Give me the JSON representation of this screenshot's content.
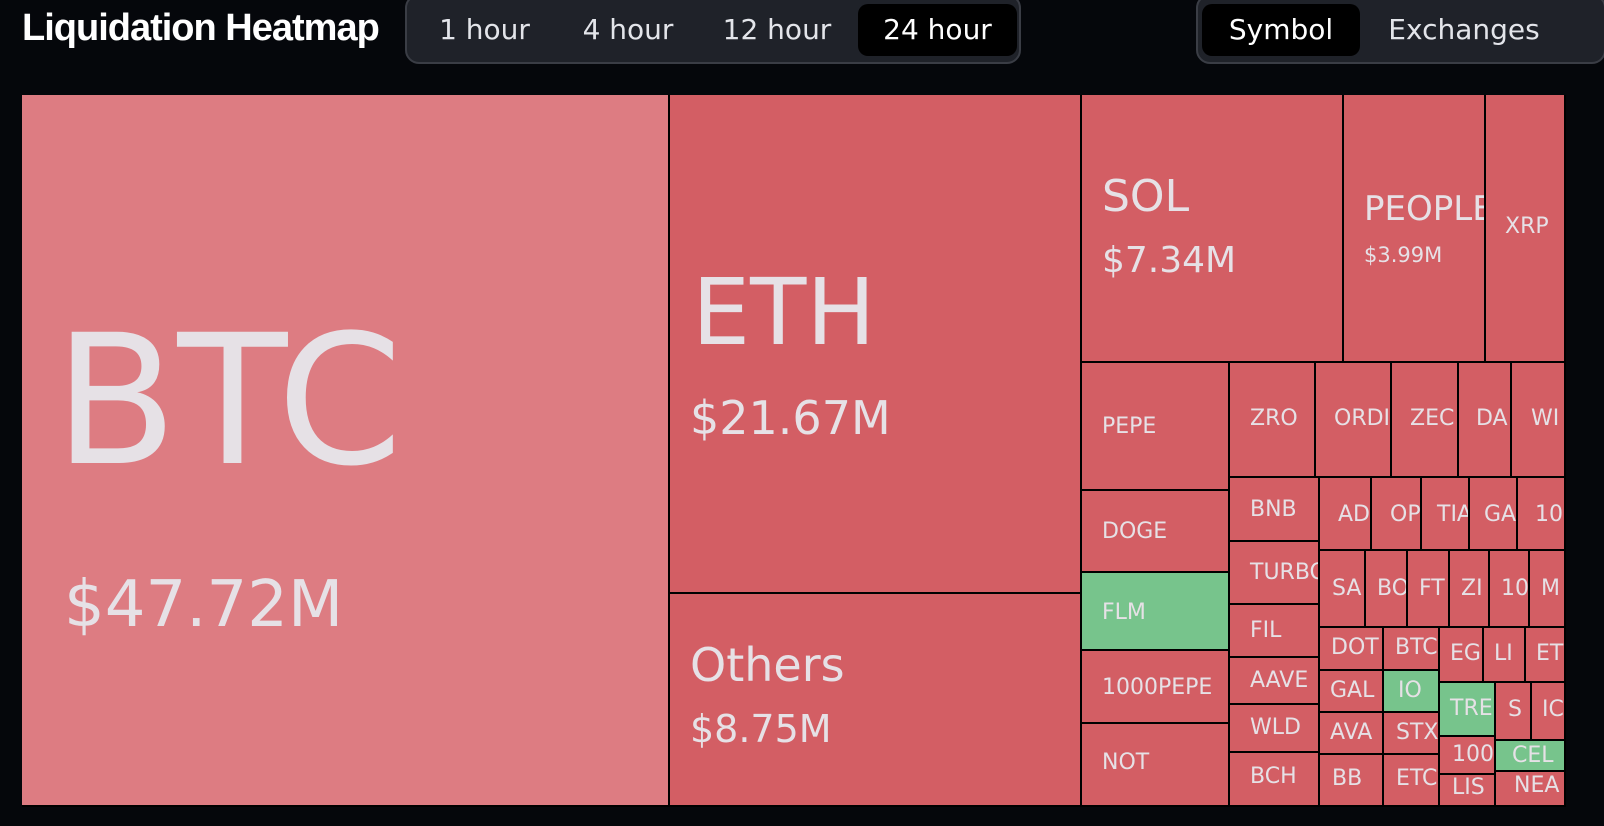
{
  "header": {
    "title": "Liquidation Heatmap",
    "timeframes": [
      {
        "label": "1 hour",
        "active": false
      },
      {
        "label": "4 hour",
        "active": false
      },
      {
        "label": "12 hour",
        "active": false
      },
      {
        "label": "24 hour",
        "active": true
      }
    ],
    "modes": [
      {
        "label": "Symbol",
        "active": true
      },
      {
        "label": "Exchanges",
        "active": false
      }
    ]
  },
  "colors": {
    "background": "#05070b",
    "tile_red": "#d35e64",
    "tile_red_light": "#dd7c82",
    "tile_green": "#77c48c",
    "tile_text": "#e6e1e6",
    "segment_bg": "#1f2229",
    "segment_active": "#000000"
  },
  "heatmap": {
    "tiles": [
      {
        "symbol": "BTC",
        "value": "$47.72M"
      },
      {
        "symbol": "ETH",
        "value": "$21.67M"
      },
      {
        "symbol": "Others",
        "value": "$8.75M"
      },
      {
        "symbol": "SOL",
        "value": "$7.34M"
      },
      {
        "symbol": "PEOPLE",
        "value": "$3.99M"
      },
      {
        "symbol": "XRP"
      },
      {
        "symbol": "PEPE"
      },
      {
        "symbol": "ZRO"
      },
      {
        "symbol": "ORDI"
      },
      {
        "symbol": "ZEC"
      },
      {
        "symbol": "DA"
      },
      {
        "symbol": "WI"
      },
      {
        "symbol": "DOGE"
      },
      {
        "symbol": "BNB"
      },
      {
        "symbol": "AD"
      },
      {
        "symbol": "OP"
      },
      {
        "symbol": "TIA"
      },
      {
        "symbol": "GA"
      },
      {
        "symbol": "10"
      },
      {
        "symbol": "TURBO"
      },
      {
        "symbol": "SA"
      },
      {
        "symbol": "BO"
      },
      {
        "symbol": "FT"
      },
      {
        "symbol": "ZI"
      },
      {
        "symbol": "10"
      },
      {
        "symbol": "M"
      },
      {
        "symbol": "FLM",
        "trend": "green"
      },
      {
        "symbol": "FIL"
      },
      {
        "symbol": "DOT"
      },
      {
        "symbol": "BTC"
      },
      {
        "symbol": "EG"
      },
      {
        "symbol": "LI"
      },
      {
        "symbol": "ET"
      },
      {
        "symbol": "1000PEPE"
      },
      {
        "symbol": "AAVE"
      },
      {
        "symbol": "GAL"
      },
      {
        "symbol": "IO",
        "trend": "green"
      },
      {
        "symbol": "TRE",
        "trend": "green"
      },
      {
        "symbol": "S"
      },
      {
        "symbol": "IC"
      },
      {
        "symbol": "WLD"
      },
      {
        "symbol": "AVA"
      },
      {
        "symbol": "STX"
      },
      {
        "symbol": "100"
      },
      {
        "symbol": "CEL",
        "trend": "green"
      },
      {
        "symbol": "NOT"
      },
      {
        "symbol": "BCH"
      },
      {
        "symbol": "BB"
      },
      {
        "symbol": "ETC"
      },
      {
        "symbol": "LIS"
      },
      {
        "symbol": "NEA"
      }
    ]
  }
}
